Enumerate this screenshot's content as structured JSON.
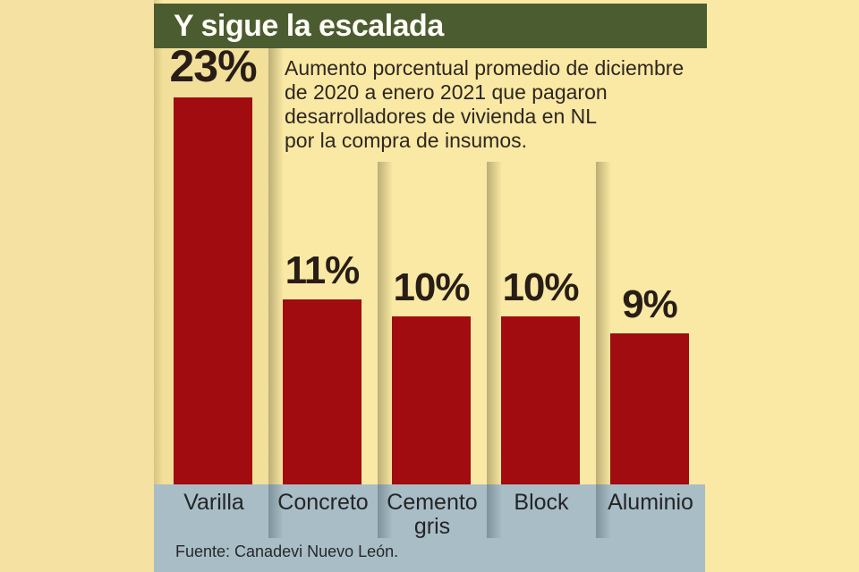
{
  "header": {
    "title": "Y sigue la escalada"
  },
  "description": {
    "lines": [
      "Aumento porcentual promedio de diciembre",
      "de 2020 a enero 2021 que pagaron",
      "desarrolladores de vivienda en NL",
      "por la compra de insumos."
    ]
  },
  "chart_data": {
    "type": "bar",
    "title": "Y sigue la escalada",
    "subtitle": "Aumento porcentual promedio de diciembre de 2020 a enero 2021 que pagaron desarrolladores de vivienda en NL por la compra de insumos.",
    "categories": [
      "Varilla",
      "Concreto",
      "Cemento gris",
      "Block",
      "Aluminio"
    ],
    "values": [
      23,
      11,
      10,
      10,
      9
    ],
    "value_labels": [
      "23%",
      "11%",
      "10%",
      "10%",
      "9%"
    ],
    "unit": "%",
    "ylim": [
      0,
      23
    ],
    "grid": false,
    "legend": false,
    "bar_color": "#A00C10",
    "value_label_color": "#281E16",
    "category_label_color": "#232526"
  },
  "source": {
    "label": "Fuente: Canadevi Nuevo León."
  },
  "colors": {
    "background_yellow": "#FAE9A4",
    "margin_yellow": "#F5E2A3",
    "header_green": "#4C5C31",
    "header_text": "#FDFDF5",
    "bar_red": "#A00C10",
    "band_blue_gray": "#A9BDC6",
    "description_text": "#2E2620",
    "source_text": "#25282A"
  }
}
